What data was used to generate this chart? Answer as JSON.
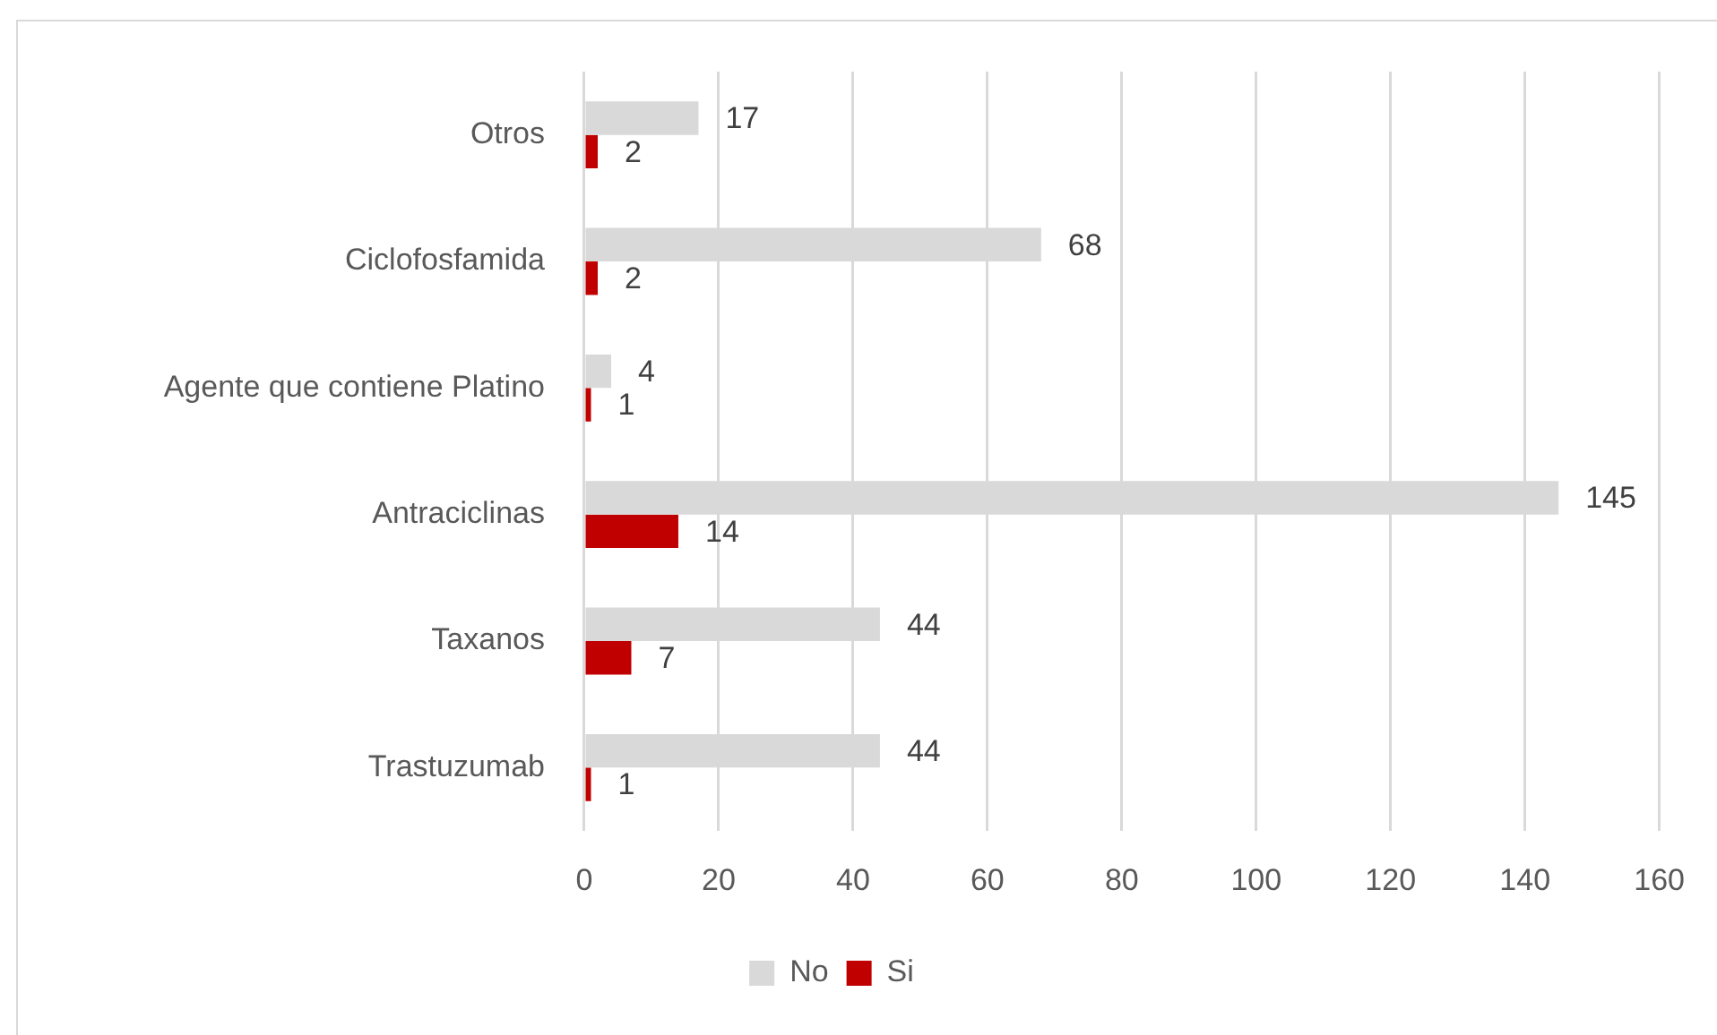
{
  "chart_data": {
    "type": "bar",
    "orientation": "horizontal",
    "categories": [
      "Otros",
      "Ciclofosfamida",
      "Agente que contiene Platino",
      "Antraciclinas",
      "Taxanos",
      "Trastuzumab"
    ],
    "series": [
      {
        "name": "No",
        "color": "#d9d9d9",
        "values": [
          17,
          68,
          4,
          145,
          44,
          44
        ]
      },
      {
        "name": "Si",
        "color": "#c00000",
        "values": [
          2,
          2,
          1,
          14,
          7,
          1
        ]
      }
    ],
    "xlim": [
      0,
      160
    ],
    "xticks": [
      0,
      20,
      40,
      60,
      80,
      100,
      120,
      140,
      160
    ],
    "grid": "x",
    "legend": "bottom",
    "data_labels": true
  }
}
